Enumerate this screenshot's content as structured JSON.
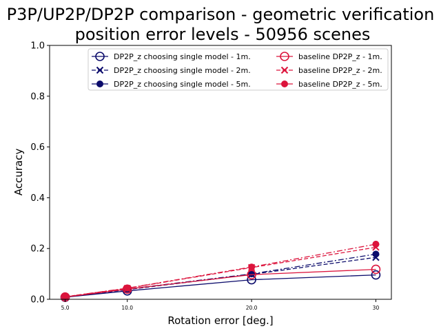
{
  "chart_data": {
    "type": "line",
    "title_line1": "P3P/UP2P/DP2P comparison - geometric verification",
    "title_line2": "position error levels - 50956 scenes",
    "xlabel": "Rotation error [deg.]",
    "ylabel": "Accuracy",
    "x": [
      5.0,
      10.0,
      20.0,
      30
    ],
    "x_tick_labels": [
      "5.0",
      "10.0",
      "20.0",
      "30"
    ],
    "ylim": [
      0.0,
      1.0
    ],
    "y_ticks": [
      "0.0",
      "0.2",
      "0.4",
      "0.6",
      "0.8",
      "1.0"
    ],
    "legend_position": "top-right",
    "grid": false,
    "series": [
      {
        "name": "DP2P_z choosing single model - 1m.",
        "color": "#0b0b6b",
        "linestyle": "solid",
        "marker": "open-circle",
        "values": [
          0.008,
          0.033,
          0.077,
          0.096
        ]
      },
      {
        "name": "DP2P_z choosing single model - 2m.",
        "color": "#0b0b6b",
        "linestyle": "dashed",
        "marker": "x",
        "values": [
          0.009,
          0.038,
          0.098,
          0.165
        ]
      },
      {
        "name": "DP2P_z choosing single model - 5m.",
        "color": "#0b0b6b",
        "linestyle": "dashdot",
        "marker": "filled-circle",
        "values": [
          0.009,
          0.04,
          0.1,
          0.178
        ]
      },
      {
        "name": "baseline DP2P_z - 1m.",
        "color": "#dc143c",
        "linestyle": "solid",
        "marker": "open-circle",
        "values": [
          0.009,
          0.04,
          0.097,
          0.118
        ]
      },
      {
        "name": "baseline DP2P_z - 2m.",
        "color": "#dc143c",
        "linestyle": "dashed",
        "marker": "x",
        "values": [
          0.01,
          0.043,
          0.125,
          0.205
        ]
      },
      {
        "name": "baseline DP2P_z - 5m.",
        "color": "#dc143c",
        "linestyle": "dashdot",
        "marker": "filled-circle",
        "values": [
          0.01,
          0.044,
          0.127,
          0.217
        ]
      }
    ]
  }
}
